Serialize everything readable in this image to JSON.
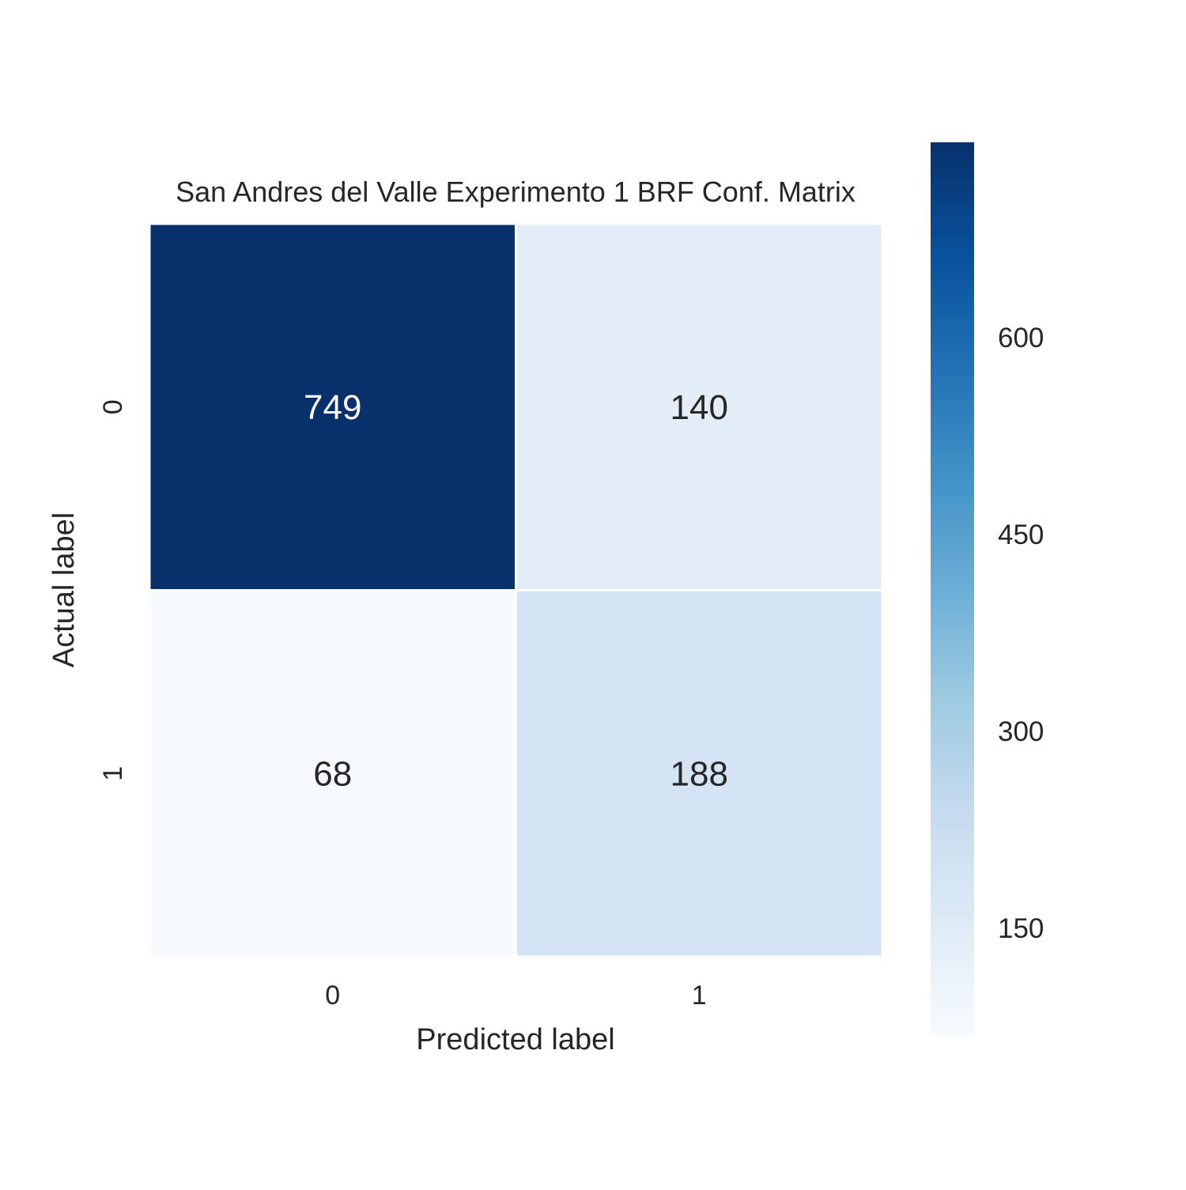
{
  "chart_data": {
    "type": "heatmap",
    "title": "San Andres del Valle Experimento 1 BRF Conf. Matrix",
    "xlabel": "Predicted label",
    "ylabel": "Actual label",
    "x_categories": [
      "0",
      "1"
    ],
    "y_categories": [
      "0",
      "1"
    ],
    "values": [
      [
        749,
        140
      ],
      [
        68,
        188
      ]
    ],
    "colormap": "Blues",
    "colorbar": {
      "min": 68,
      "max": 749,
      "ticks": [
        "150",
        "300",
        "450",
        "600"
      ]
    },
    "colors": {
      "low": "#f7fbff",
      "high": "#08306b",
      "text_dark": "#262626",
      "text_light": "#ffffff",
      "cell_border": "#ffffff"
    }
  }
}
